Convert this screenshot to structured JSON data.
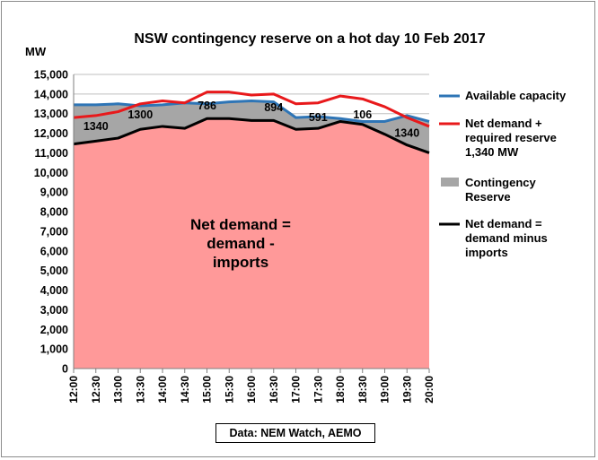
{
  "chart_data": {
    "type": "area",
    "title": "NSW contingency reserve on a hot day  10 Feb  2017",
    "ylabel": "MW",
    "xlabel": "",
    "ylim": [
      0,
      15000
    ],
    "yticks": [
      0,
      1000,
      2000,
      3000,
      4000,
      5000,
      6000,
      7000,
      8000,
      9000,
      10000,
      11000,
      12000,
      13000,
      14000,
      15000
    ],
    "ytick_labels": [
      "0",
      "1,000",
      "2,000",
      "3,000",
      "4,000",
      "5,000",
      "6,000",
      "7,000",
      "8,000",
      "9,000",
      "10,000",
      "11,000",
      "12,000",
      "13,000",
      "14,000",
      "15,000"
    ],
    "categories": [
      "12:00",
      "12:30",
      "13:00",
      "13:30",
      "14:00",
      "14:30",
      "15:00",
      "15:30",
      "16:00",
      "16:30",
      "17:00",
      "17:30",
      "18:00",
      "18:30",
      "19:00",
      "19:30",
      "20:00"
    ],
    "grid": true,
    "legend_position": "right",
    "series": [
      {
        "name": "Available capacity",
        "type": "line",
        "color": "#2e75b6",
        "values": [
          13450,
          13450,
          13500,
          13400,
          13450,
          13550,
          13500,
          13600,
          13650,
          13600,
          12800,
          12850,
          12750,
          12600,
          12600,
          12900,
          12600
        ]
      },
      {
        "name": "Net demand + required reserve 1,340 MW",
        "type": "line",
        "color": "#e8191b",
        "values": [
          12800,
          12900,
          13100,
          13500,
          13650,
          13550,
          14100,
          14100,
          13950,
          14000,
          13500,
          13550,
          13900,
          13750,
          13350,
          12800,
          12350
        ]
      },
      {
        "name": "Contingency Reserve",
        "type": "area",
        "color": "#a6a6a6",
        "values": [
          2000,
          1850,
          1800,
          1250,
          1150,
          1350,
          750,
          850,
          1000,
          1000,
          620,
          650,
          150,
          150,
          600,
          1500,
          1600
        ]
      },
      {
        "name": "Net demand = demand minus imports",
        "type": "line",
        "color": "#000000",
        "fill_color": "#ff9999",
        "values": [
          11450,
          11600,
          11750,
          12200,
          12350,
          12250,
          12750,
          12750,
          12650,
          12650,
          12200,
          12250,
          12600,
          12450,
          11950,
          11400,
          11000
        ]
      }
    ],
    "annotations": [
      {
        "text": "1340",
        "x": "12:30",
        "y": 12350
      },
      {
        "text": "1300",
        "x": "13:30",
        "y": 12950
      },
      {
        "text": "786",
        "x": "15:00",
        "y": 13400
      },
      {
        "text": "894",
        "x": "16:30",
        "y": 13300
      },
      {
        "text": "591",
        "x": "17:30",
        "y": 12800
      },
      {
        "text": "106",
        "x": "18:30",
        "y": 12950
      },
      {
        "text": "1340",
        "x": "19:30",
        "y": 12000
      }
    ],
    "center_label": [
      "Net demand =",
      "demand -",
      "imports"
    ],
    "legend": [
      {
        "lines": [
          "Available capacity"
        ],
        "color": "#2e75b6",
        "kind": "line"
      },
      {
        "lines": [
          "Net demand +",
          "required reserve",
          "1,340 MW"
        ],
        "color": "#e8191b",
        "kind": "line"
      },
      {
        "lines": [
          "Contingency",
          "Reserve"
        ],
        "color": "#a6a6a6",
        "kind": "box"
      },
      {
        "lines": [
          "Net demand =",
          "demand minus",
          "imports"
        ],
        "color": "#000000",
        "kind": "line"
      }
    ],
    "source": "Data: NEM Watch, AEMO"
  },
  "colors": {
    "plot_fill": "#ff9999",
    "reserve_fill": "#a6a6a6",
    "gridline": "#bfbfbf"
  }
}
